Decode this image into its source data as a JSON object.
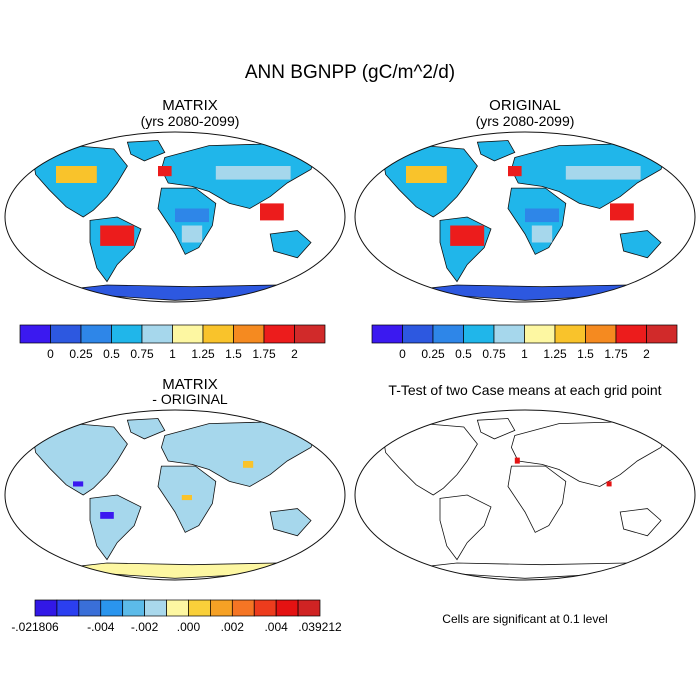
{
  "figure": {
    "title": "ANN BGNPP (gC/m^2/d)"
  },
  "panels": {
    "matrix": {
      "title": "MATRIX",
      "subtitle": "(yrs 2080-2099)"
    },
    "original": {
      "title": "ORIGINAL",
      "subtitle": "(yrs 2080-2099)"
    },
    "difference": {
      "title": "MATRIX",
      "subtitle": "- ORIGINAL"
    },
    "ttest": {
      "title": "T-Test of two Case means at each grid point",
      "note": "Cells are significant at 0.1 level"
    }
  },
  "colorbars": {
    "main": {
      "colors": [
        "#3b19f0",
        "#2d58e0",
        "#2e86e8",
        "#20b6ea",
        "#a6d7ec",
        "#fdf7a2",
        "#f9c32b",
        "#f58a20",
        "#ec1c1c",
        "#d12a2a"
      ],
      "labels": [
        "0",
        "0.25",
        "0.5",
        "0.75",
        "1",
        "1.25",
        "1.5",
        "1.75",
        "2"
      ]
    },
    "diff": {
      "colors": [
        "#3218e6",
        "#2b3ff0",
        "#3a6fd8",
        "#2a95ee",
        "#5cbbe9",
        "#a9d8ec",
        "#fdf7a2",
        "#f9d03a",
        "#f6a125",
        "#f57524",
        "#ed3c1d",
        "#e41212",
        "#d02323"
      ],
      "labels": [
        "-.021806",
        "-.004",
        "-.002",
        ".000",
        ".002",
        ".004",
        ".039212"
      ]
    }
  },
  "map_colors": {
    "ocean": "#ffffff",
    "antarctica_main": "#2d58e0",
    "antarctica_diff": "#fdf7a2",
    "tropics_main": "#ec1c1c",
    "land_diff": "#a6d7ec",
    "significant": "#e41212"
  }
}
